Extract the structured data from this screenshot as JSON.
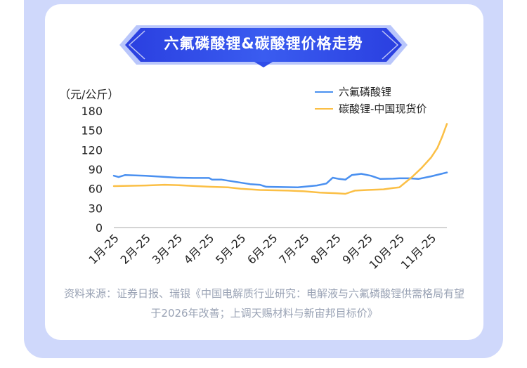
{
  "title": "六氟磷酸锂&碳酸锂价格走势",
  "source_note": "资料来源：证券日报、瑞银《中国电解质行业研究：电解液与六氟磷酸锂供需格局有望于2026年改善；上调天赐材料与新宙邦目标价》",
  "colors": {
    "frame": "#cfd8fb",
    "banner": "#2f4de8",
    "series1": "#4a90f0",
    "series2": "#fbbf45",
    "axis": "#c6c6c6",
    "text": "#222222",
    "note": "#9aa3b5"
  },
  "chart_data": {
    "type": "line",
    "unit_label": "（元/公斤）",
    "ylim": [
      0,
      180
    ],
    "yticks": [
      "0",
      "30",
      "60",
      "90",
      "120",
      "150",
      "180"
    ],
    "categories": [
      "1月-25",
      "2月-25",
      "3月-25",
      "4月-25",
      "5月-25",
      "6月-25",
      "7月-25",
      "8月-25",
      "9月-25",
      "10月-25",
      "11月-25"
    ],
    "legend_position": "top-right",
    "grid": false,
    "series": [
      {
        "name": "六氟磷酸锂",
        "color": "#4a90f0",
        "x": [
          0,
          0.15,
          0.35,
          1,
          2,
          2.5,
          3,
          3.1,
          3.4,
          4.3,
          4.6,
          4.8,
          5.8,
          6.4,
          6.7,
          6.9,
          7.1,
          7.3,
          7.5,
          7.8,
          8.1,
          8.4,
          8.8,
          9.0,
          9.3,
          9.6,
          10,
          10.25,
          10.5
        ],
        "y": [
          80,
          78,
          81,
          80,
          77,
          76.5,
          76.5,
          74,
          74,
          67,
          66,
          63,
          62,
          65,
          68,
          77,
          75,
          74,
          81,
          83,
          80,
          75,
          75.5,
          76,
          76,
          75,
          79,
          82,
          85
        ]
      },
      {
        "name": "碳酸锂-中国现货价",
        "color": "#fbbf45",
        "x": [
          0,
          1,
          1.6,
          2,
          2.6,
          3,
          3.6,
          4,
          4.6,
          5.5,
          6,
          6.5,
          7,
          7.3,
          7.6,
          8,
          8.5,
          8.8,
          9.0,
          9.1,
          9.4,
          9.7,
          10.0,
          10.2,
          10.35,
          10.5
        ],
        "y": [
          64,
          65,
          66,
          65.5,
          64,
          63,
          62,
          60,
          58,
          57,
          56,
          54,
          53,
          52,
          57,
          58,
          59,
          61,
          62,
          66,
          78,
          92,
          108,
          123,
          140,
          160
        ]
      }
    ]
  }
}
